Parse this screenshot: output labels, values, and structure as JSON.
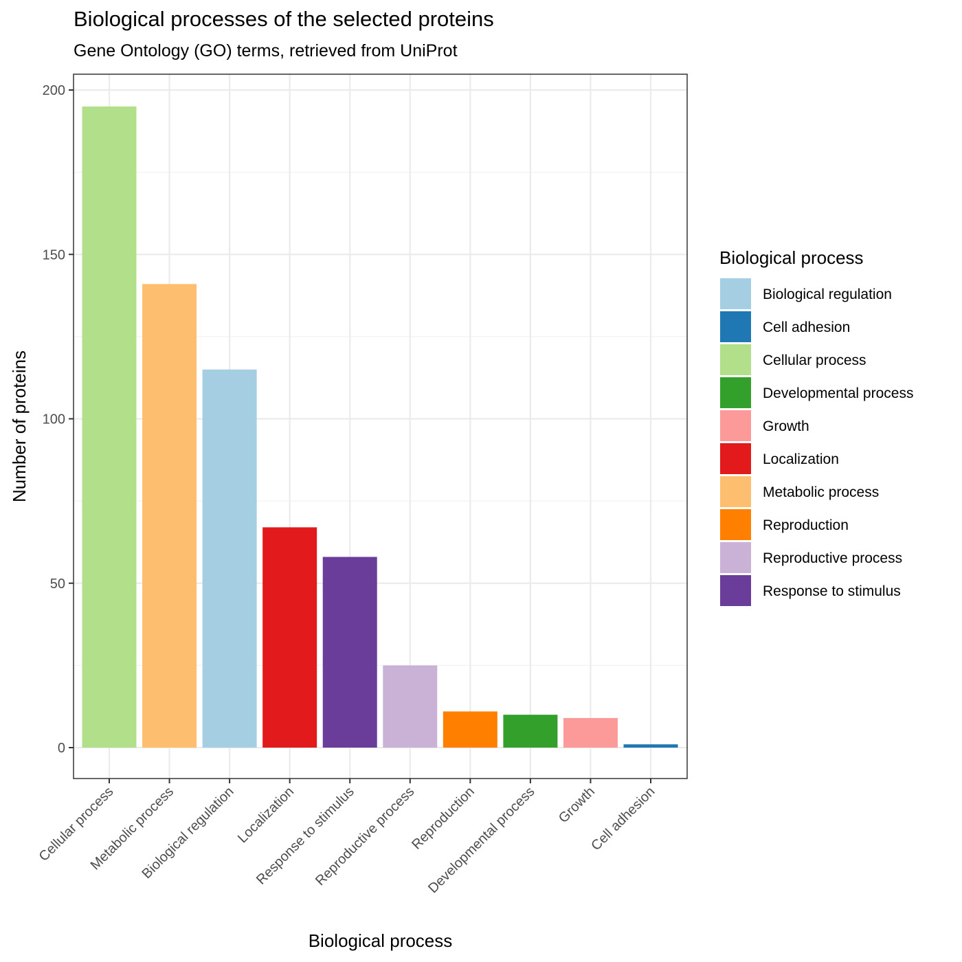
{
  "chart_data": {
    "type": "bar",
    "title": "Biological processes of the selected proteins",
    "subtitle": "Gene Ontology (GO) terms, retrieved from UniProt",
    "xlabel": "Biological process",
    "ylabel": "Number of proteins",
    "ylim": [
      0,
      200
    ],
    "yticks": [
      0,
      50,
      100,
      150,
      200
    ],
    "grid": true,
    "categories": [
      "Cellular process",
      "Metabolic process",
      "Biological regulation",
      "Localization",
      "Response to stimulus",
      "Reproductive process",
      "Reproduction",
      "Developmental process",
      "Growth",
      "Cell adhesion"
    ],
    "values": [
      195,
      141,
      115,
      67,
      58,
      25,
      11,
      10,
      9,
      1
    ],
    "colors": [
      "#b2df8a",
      "#fdbf6f",
      "#a6cee3",
      "#e31a1c",
      "#6a3d9a",
      "#cab2d6",
      "#ff7f00",
      "#33a02c",
      "#fb9a99",
      "#1f78b4"
    ],
    "legend": {
      "title": "Biological process",
      "position": "right",
      "entries": [
        {
          "label": "Biological regulation",
          "color": "#a6cee3"
        },
        {
          "label": "Cell adhesion",
          "color": "#1f78b4"
        },
        {
          "label": "Cellular process",
          "color": "#b2df8a"
        },
        {
          "label": "Developmental process",
          "color": "#33a02c"
        },
        {
          "label": "Growth",
          "color": "#fb9a99"
        },
        {
          "label": "Localization",
          "color": "#e31a1c"
        },
        {
          "label": "Metabolic process",
          "color": "#fdbf6f"
        },
        {
          "label": "Reproduction",
          "color": "#ff7f00"
        },
        {
          "label": "Reproductive process",
          "color": "#cab2d6"
        },
        {
          "label": "Response to stimulus",
          "color": "#6a3d9a"
        }
      ]
    }
  }
}
